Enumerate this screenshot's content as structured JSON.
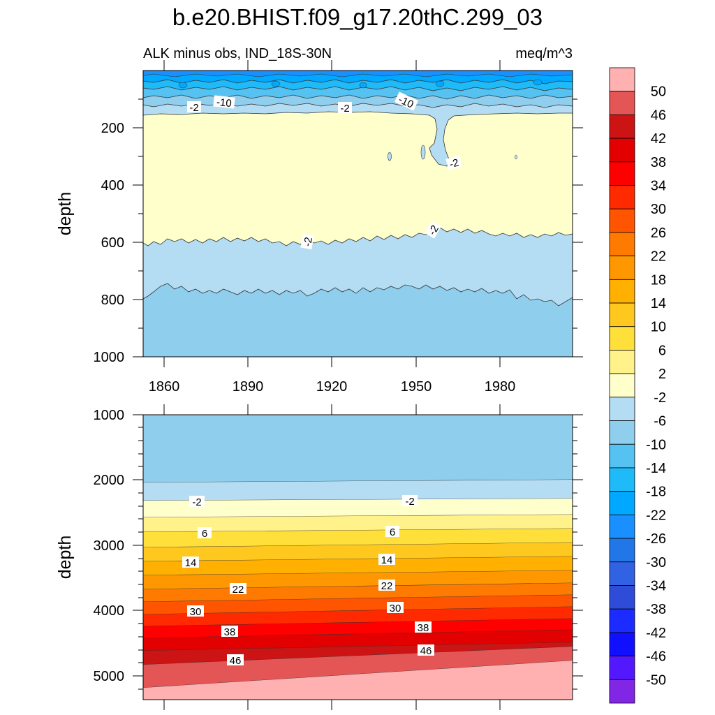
{
  "title": "b.e20.BHIST.f09_g17.20thC.299_03",
  "chart_data": {
    "type": "contour",
    "variable_label": "ALK minus obs, IND_18S-30N",
    "units": "meq/m^3",
    "x_ticks": [
      1860,
      1890,
      1920,
      1950,
      1980
    ],
    "x_range": [
      1851,
      2005
    ],
    "colorbar": {
      "levels": [
        "50",
        "46",
        "42",
        "38",
        "34",
        "30",
        "26",
        "22",
        "18",
        "14",
        "10",
        "6",
        "2",
        "-2",
        "-6",
        "-10",
        "-14",
        "-18",
        "-22",
        "-26",
        "-30",
        "-34",
        "-38",
        "-42",
        "-46",
        "-50"
      ],
      "colors": [
        "#ffb1b1",
        "#e45656",
        "#cd1414",
        "#e20000",
        "#ff0000",
        "#ff2a00",
        "#ff5400",
        "#ff7a00",
        "#ff9800",
        "#ffb000",
        "#ffc81f",
        "#ffdf3a",
        "#fff28a",
        "#ffffcc",
        "#b4ddf4",
        "#90ceed",
        "#55c2f2",
        "#1fbaf8",
        "#00a8ff",
        "#1a8fff",
        "#2176e8",
        "#3162e4",
        "#2f4cd8",
        "#1c2bff",
        "#1010ff",
        "#5418ff",
        "#8226e6"
      ]
    },
    "panels": [
      {
        "name": "upper",
        "ylabel": "depth",
        "y_range": [
          0,
          1000
        ],
        "y_ticks": [
          200,
          400,
          600,
          800,
          1000
        ],
        "contour_labels": [
          "-2",
          "-10",
          "-2",
          "-10",
          "-2",
          "-2",
          "-2"
        ]
      },
      {
        "name": "lower",
        "ylabel": "depth",
        "y_range": [
          1000,
          5350
        ],
        "y_ticks": [
          1000,
          2000,
          3000,
          4000,
          5000
        ],
        "contour_labels": [
          "-2",
          "-2",
          "6",
          "6",
          "14",
          "14",
          "22",
          "22",
          "30",
          "30",
          "38",
          "38",
          "46",
          "46"
        ]
      }
    ]
  }
}
